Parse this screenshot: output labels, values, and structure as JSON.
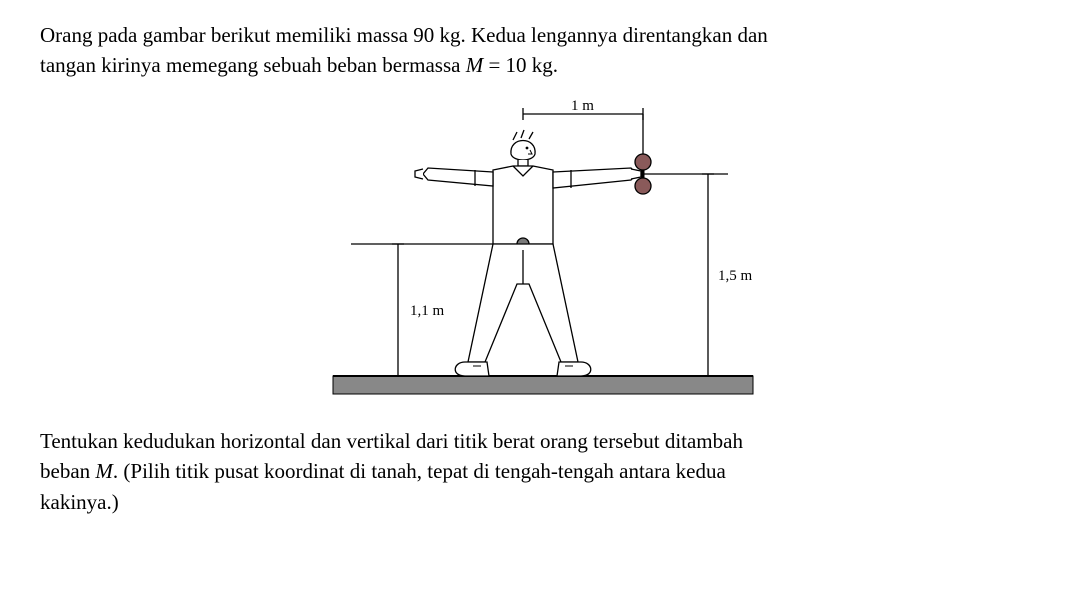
{
  "problem": {
    "line1": "Orang pada gambar berikut memiliki massa 90 kg. Kedua lengannya direntangkan dan",
    "line2_prefix": "tangan kirinya memegang sebuah beban bermassa ",
    "line2_var": "M",
    "line2_suffix": " = 10 kg."
  },
  "diagram": {
    "label_top": "1 m",
    "label_left": "1,1 m",
    "label_right": "1,5 m",
    "colors": {
      "outline": "#000000",
      "fill_body": "#ffffff",
      "belt_ball": "#7a7a7a",
      "dumbbell": "#8a5a5a",
      "ground_fill": "#888888",
      "ground_line": "#000000",
      "tick": "#000000"
    },
    "stroke_width": 1.3,
    "ground_height": 18,
    "font_size": 15
  },
  "question": {
    "line1_prefix": "Tentukan kedudukan horizontal dan vertikal dari titik berat orang tersebut ditambah",
    "line2_prefix": "beban ",
    "line2_var": "M",
    "line2_suffix": ". (Pilih titik pusat koordinat di tanah, tepat di tengah-tengah antara kedua",
    "line3": "kakinya.)"
  }
}
